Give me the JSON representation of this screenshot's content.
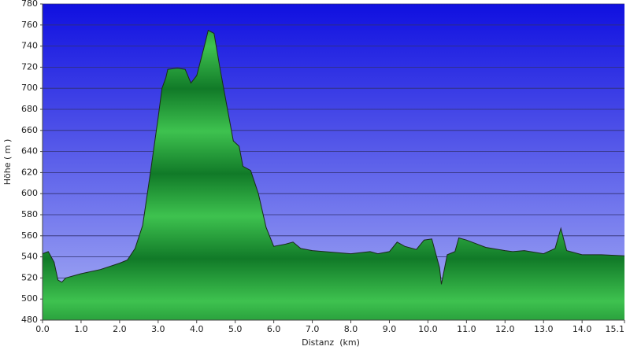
{
  "chart_data": {
    "type": "area",
    "xlabel": "Distanz  (km)",
    "ylabel": "Höhe ( m )",
    "x": [
      0.0,
      0.15,
      0.3,
      0.4,
      0.5,
      0.6,
      1.0,
      1.5,
      2.0,
      2.2,
      2.4,
      2.6,
      2.8,
      3.0,
      3.1,
      3.2,
      3.25,
      3.5,
      3.7,
      3.85,
      4.0,
      4.2,
      4.3,
      4.45,
      4.6,
      4.8,
      4.95,
      5.1,
      5.2,
      5.4,
      5.6,
      5.8,
      6.0,
      6.3,
      6.5,
      6.7,
      7.0,
      8.0,
      8.5,
      8.7,
      9.0,
      9.2,
      9.4,
      9.7,
      9.9,
      10.1,
      10.3,
      10.35,
      10.5,
      10.7,
      10.8,
      11.0,
      11.5,
      12.0,
      12.2,
      12.5,
      13.0,
      13.3,
      13.45,
      13.6,
      14.0,
      14.5,
      15.1
    ],
    "values": [
      543,
      545,
      535,
      518,
      516,
      520,
      524,
      528,
      534,
      537,
      548,
      570,
      620,
      672,
      700,
      710,
      718,
      719,
      718,
      705,
      712,
      740,
      755,
      752,
      720,
      680,
      650,
      645,
      626,
      622,
      600,
      568,
      550,
      552,
      554,
      548,
      546,
      543,
      545,
      543,
      545,
      554,
      550,
      547,
      556,
      557,
      530,
      514,
      542,
      545,
      558,
      556,
      549,
      546,
      545,
      546,
      543,
      548,
      567,
      546,
      542,
      542,
      541
    ],
    "color": "#2a9a3c",
    "xlim": [
      0,
      15.1
    ],
    "ylim": [
      480,
      780
    ],
    "xticks": [
      {
        "value": 0,
        "label": "0.0"
      },
      {
        "value": 1,
        "label": "1.0"
      },
      {
        "value": 2,
        "label": "2.0"
      },
      {
        "value": 3,
        "label": "3.0"
      },
      {
        "value": 4,
        "label": "4.0"
      },
      {
        "value": 5,
        "label": "5.0"
      },
      {
        "value": 6,
        "label": "6.0"
      },
      {
        "value": 7,
        "label": "7.0"
      },
      {
        "value": 8,
        "label": "8.0"
      },
      {
        "value": 9,
        "label": "9.0"
      },
      {
        "value": 10,
        "label": "10.0"
      },
      {
        "value": 11,
        "label": "11.0"
      },
      {
        "value": 12,
        "label": "12.0"
      },
      {
        "value": 13,
        "label": "13.0"
      },
      {
        "value": 14,
        "label": "14.0"
      },
      {
        "value": 15.1,
        "label": "15.1"
      }
    ],
    "yticks": [
      480,
      500,
      520,
      540,
      560,
      580,
      600,
      620,
      640,
      660,
      680,
      700,
      720,
      740,
      760,
      780
    ],
    "grid": true
  }
}
